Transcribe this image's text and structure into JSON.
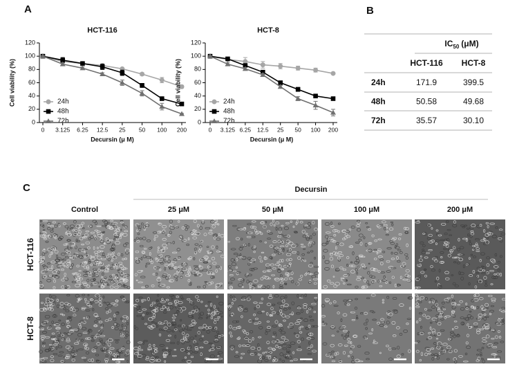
{
  "panel_labels": [
    "A",
    "B",
    "C"
  ],
  "chart_data": [
    {
      "type": "line",
      "title": "HCT-116",
      "x_label": "Decursin (μ M)",
      "y_label": "Cell viability (%)",
      "categories": [
        "0",
        "3.125",
        "6.25",
        "12.5",
        "25",
        "50",
        "100",
        "200"
      ],
      "ylim": [
        0,
        120
      ],
      "yticks": [
        0,
        20,
        40,
        60,
        80,
        100,
        120
      ],
      "legend": "lower left",
      "series": [
        {
          "name": "24h",
          "color": "#a6a6a6",
          "marker": "circle",
          "values": [
            100,
            92,
            89,
            86,
            81,
            73,
            64,
            54
          ],
          "errors": [
            1,
            2,
            2,
            2,
            1,
            2,
            4,
            2
          ]
        },
        {
          "name": "48h",
          "color": "#000000",
          "marker": "square",
          "values": [
            100,
            94,
            89,
            84,
            75,
            56,
            36,
            28
          ],
          "errors": [
            1,
            4,
            2,
            4,
            4,
            3,
            2,
            1
          ]
        },
        {
          "name": "72h",
          "color": "#707070",
          "marker": "triangle",
          "values": [
            100,
            88,
            82,
            73,
            60,
            44,
            24,
            13
          ],
          "errors": [
            1,
            2,
            2,
            2,
            4,
            4,
            5,
            1
          ]
        }
      ]
    },
    {
      "type": "line",
      "title": "HCT-8",
      "x_label": "Decursin (μ M)",
      "y_label": "Cell viability (%)",
      "categories": [
        "0",
        "3.125",
        "6.25",
        "12.5",
        "25",
        "50",
        "100",
        "200"
      ],
      "ylim": [
        0,
        120
      ],
      "yticks": [
        0,
        20,
        40,
        60,
        80,
        100,
        120
      ],
      "legend": "lower left",
      "series": [
        {
          "name": "24h",
          "color": "#a6a6a6",
          "marker": "circle",
          "values": [
            100,
            95,
            92,
            87,
            85,
            82,
            79,
            74
          ],
          "errors": [
            1,
            2,
            6,
            5,
            4,
            3,
            3,
            1
          ]
        },
        {
          "name": "48h",
          "color": "#000000",
          "marker": "square",
          "values": [
            100,
            96,
            86,
            76,
            60,
            50,
            40,
            36
          ],
          "errors": [
            1,
            2,
            2,
            2,
            2,
            3,
            1,
            2
          ]
        },
        {
          "name": "72h",
          "color": "#707070",
          "marker": "triangle",
          "values": [
            100,
            88,
            81,
            72,
            54,
            36,
            26,
            15
          ],
          "errors": [
            1,
            2,
            2,
            2,
            2,
            3,
            6,
            5
          ]
        }
      ]
    }
  ],
  "table": {
    "title": {
      "text": "IC",
      "subscript": "50",
      "unit": "(μM)"
    },
    "columns": [
      "HCT-116",
      "HCT-8"
    ],
    "rows": [
      [
        "24h",
        "171.9",
        "399.5"
      ],
      [
        "48h",
        "50.58",
        "49.68"
      ],
      [
        "72h",
        "35.57",
        "30.10"
      ]
    ]
  },
  "micrographs": {
    "group_label": "Decursin",
    "columns": [
      "Control",
      "25 μM",
      "50 μM",
      "100 μM",
      "200 μM"
    ],
    "rows": [
      "HCT-116",
      "HCT-8"
    ]
  }
}
